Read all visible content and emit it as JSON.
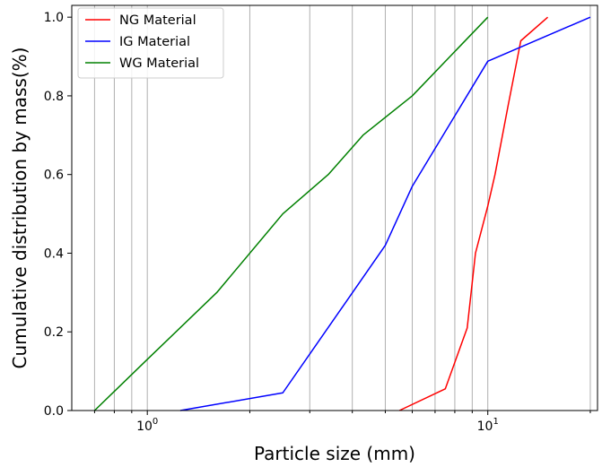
{
  "chart_data": {
    "type": "line",
    "xlabel": "Particle size (mm)",
    "ylabel": "Cumulative distribution by mass(%)",
    "xscale": "log",
    "xlim": [
      0.6,
      21
    ],
    "ylim": [
      0,
      1.03
    ],
    "grid": "x-major-and-minor",
    "legend_position": "top-left",
    "x_major_ticks": [
      {
        "value": 1,
        "base": "10",
        "exp": "0"
      },
      {
        "value": 10,
        "base": "10",
        "exp": "1"
      }
    ],
    "x_minor_ticks": [
      0.7,
      0.8,
      0.9,
      2,
      3,
      4,
      5,
      6,
      7,
      8,
      9,
      20
    ],
    "y_ticks": [
      {
        "value": 0.0,
        "label": "0.0"
      },
      {
        "value": 0.2,
        "label": "0.2"
      },
      {
        "value": 0.4,
        "label": "0.4"
      },
      {
        "value": 0.6,
        "label": "0.6"
      },
      {
        "value": 0.8,
        "label": "0.8"
      },
      {
        "value": 1.0,
        "label": "1.0"
      }
    ],
    "series": [
      {
        "name": "NG Material",
        "color": "#ff0000",
        "points": [
          [
            5.5,
            0.0
          ],
          [
            7.5,
            0.055
          ],
          [
            8.7,
            0.21
          ],
          [
            9.2,
            0.4
          ],
          [
            10.0,
            0.52
          ],
          [
            10.5,
            0.6
          ],
          [
            11.5,
            0.78
          ],
          [
            12.5,
            0.94
          ],
          [
            15.0,
            1.0
          ]
        ]
      },
      {
        "name": "IG Material",
        "color": "#0000ff",
        "points": [
          [
            1.25,
            0.0
          ],
          [
            2.5,
            0.045
          ],
          [
            5.0,
            0.42
          ],
          [
            6.0,
            0.57
          ],
          [
            10.0,
            0.888
          ],
          [
            20.0,
            1.0
          ]
        ]
      },
      {
        "name": "WG Material",
        "color": "#008000",
        "points": [
          [
            0.7,
            0.0
          ],
          [
            1.0,
            0.13
          ],
          [
            1.6,
            0.3
          ],
          [
            2.5,
            0.5
          ],
          [
            3.4,
            0.6
          ],
          [
            4.3,
            0.7
          ],
          [
            6.0,
            0.8
          ],
          [
            10.0,
            1.0
          ]
        ]
      }
    ]
  }
}
